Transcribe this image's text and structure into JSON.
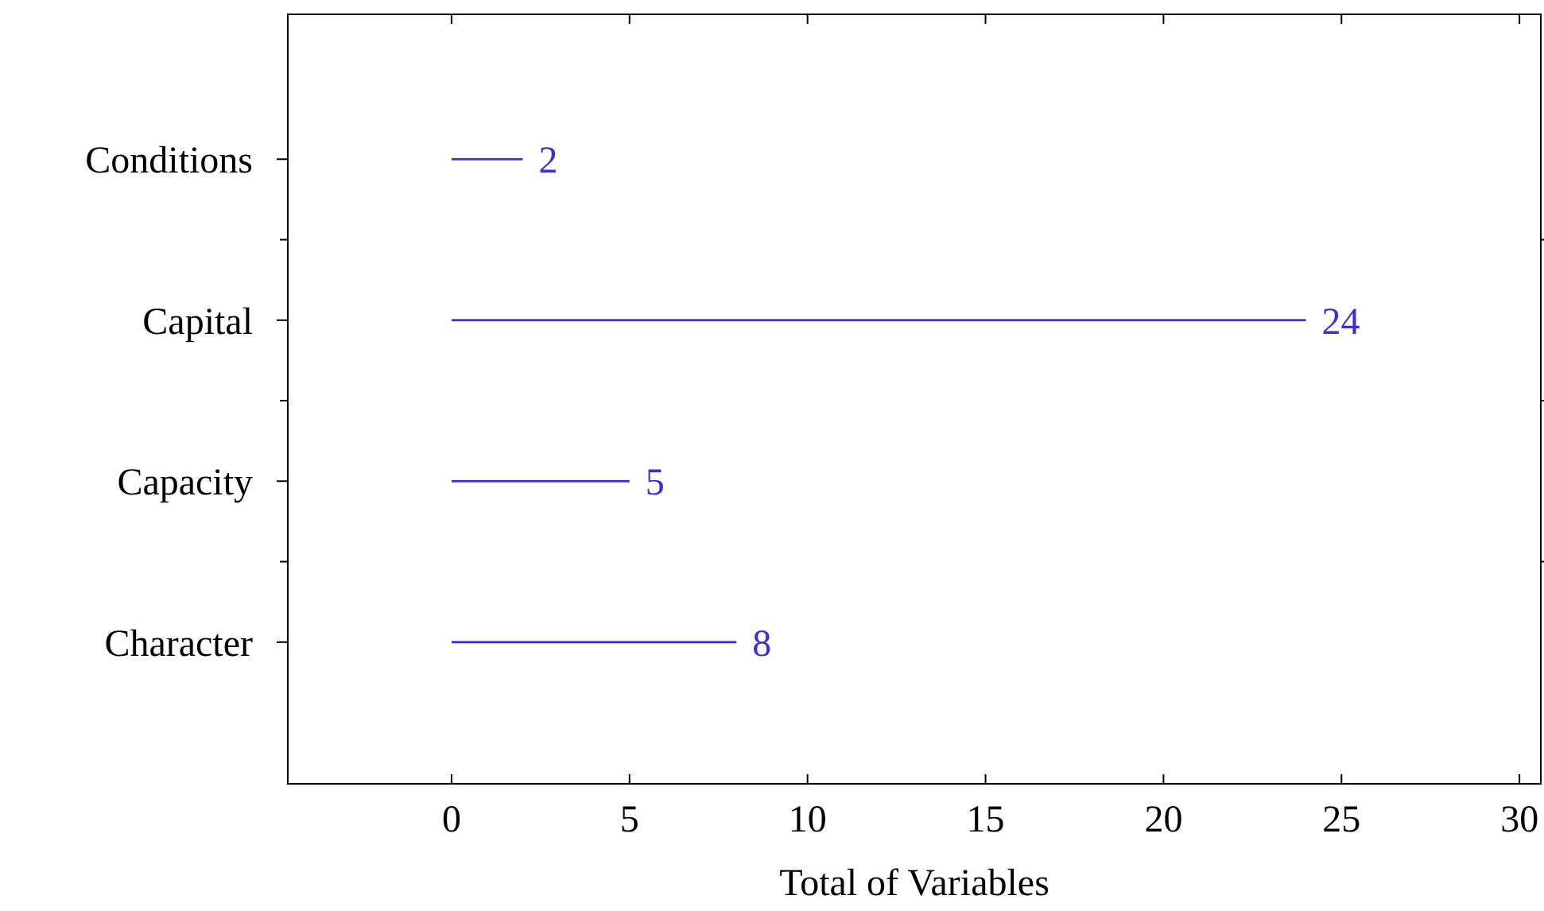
{
  "chart_data": {
    "type": "bar",
    "orientation": "horizontal",
    "xlabel": "Total of Variables",
    "categories": [
      "Conditions",
      "Capital",
      "Capacity",
      "Character"
    ],
    "values": [
      2,
      24,
      5,
      8
    ],
    "color": "#3b2fd6",
    "data_labels": true,
    "xlim": [
      -4.6,
      30.6
    ],
    "xticks": [
      0,
      5,
      10,
      15,
      20,
      25,
      30
    ],
    "grid": false
  }
}
